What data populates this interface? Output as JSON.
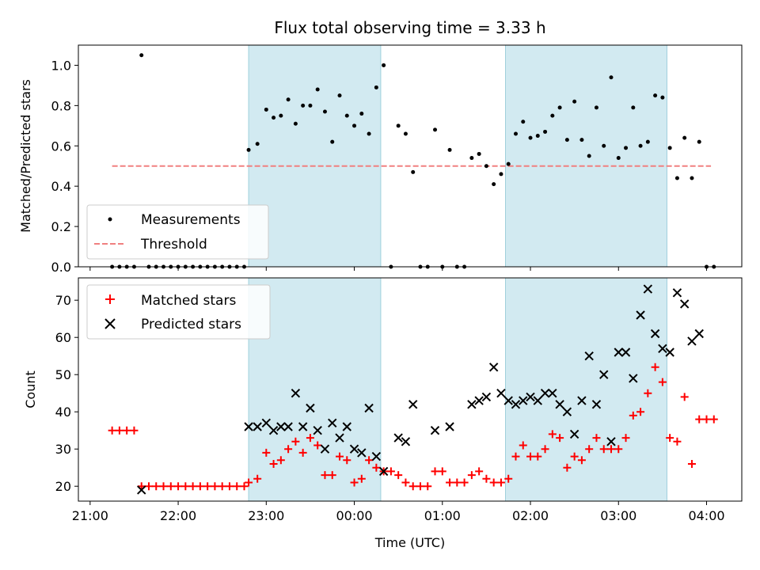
{
  "figure": {
    "title": "Flux total observing time = 3.33 h",
    "xlabel": "Time (UTC)",
    "x_tick_labels": [
      "21:00",
      "22:00",
      "23:00",
      "00:00",
      "01:00",
      "02:00",
      "03:00",
      "04:00"
    ],
    "shaded_intervals": [
      [
        "22:48",
        "00:18"
      ],
      [
        "01:43",
        "03:33"
      ]
    ],
    "shade_color": "#add8e6"
  },
  "chart_data": [
    {
      "type": "scatter",
      "xlabel": "",
      "ylabel": "Matched/Predicted stars",
      "xlim": [
        "20:52",
        "04:24"
      ],
      "ylim": [
        0,
        1.1
      ],
      "y_ticks": [
        "0.0",
        "0.2",
        "0.4",
        "0.6",
        "0.8",
        "1.0"
      ],
      "legend_position": "lower-left",
      "threshold": {
        "value": 0.5,
        "x_range": [
          "21:15",
          "04:03"
        ]
      },
      "series": [
        {
          "name": "Measurements",
          "color": "#000000",
          "marker": "dot",
          "points": [
            [
              "21:15",
              0
            ],
            [
              "21:20",
              0
            ],
            [
              "21:25",
              0
            ],
            [
              "21:30",
              0
            ],
            [
              "21:35",
              1.05
            ],
            [
              "21:40",
              0
            ],
            [
              "21:45",
              0
            ],
            [
              "21:50",
              0
            ],
            [
              "21:55",
              0
            ],
            [
              "22:00",
              0
            ],
            [
              "22:05",
              0
            ],
            [
              "22:10",
              0
            ],
            [
              "22:15",
              0
            ],
            [
              "22:20",
              0
            ],
            [
              "22:25",
              0
            ],
            [
              "22:30",
              0
            ],
            [
              "22:35",
              0
            ],
            [
              "22:40",
              0
            ],
            [
              "22:45",
              0
            ],
            [
              "22:48",
              0.58
            ],
            [
              "22:54",
              0.61
            ],
            [
              "23:00",
              0.78
            ],
            [
              "23:05",
              0.74
            ],
            [
              "23:10",
              0.75
            ],
            [
              "23:15",
              0.83
            ],
            [
              "23:20",
              0.71
            ],
            [
              "23:25",
              0.8
            ],
            [
              "23:30",
              0.8
            ],
            [
              "23:35",
              0.88
            ],
            [
              "23:40",
              0.77
            ],
            [
              "23:45",
              0.62
            ],
            [
              "23:50",
              0.85
            ],
            [
              "23:55",
              0.75
            ],
            [
              "00:00",
              0.7
            ],
            [
              "00:05",
              0.76
            ],
            [
              "00:10",
              0.66
            ],
            [
              "00:15",
              0.89
            ],
            [
              "00:20",
              1.0
            ],
            [
              "00:25",
              0
            ],
            [
              "00:30",
              0.7
            ],
            [
              "00:35",
              0.66
            ],
            [
              "00:40",
              0.47
            ],
            [
              "00:45",
              0
            ],
            [
              "00:50",
              0
            ],
            [
              "00:55",
              0.68
            ],
            [
              "01:00",
              0
            ],
            [
              "01:05",
              0.58
            ],
            [
              "01:10",
              0
            ],
            [
              "01:15",
              0
            ],
            [
              "01:20",
              0.54
            ],
            [
              "01:25",
              0.56
            ],
            [
              "01:30",
              0.5
            ],
            [
              "01:35",
              0.41
            ],
            [
              "01:40",
              0.46
            ],
            [
              "01:45",
              0.51
            ],
            [
              "01:50",
              0.66
            ],
            [
              "01:55",
              0.72
            ],
            [
              "02:00",
              0.64
            ],
            [
              "02:05",
              0.65
            ],
            [
              "02:10",
              0.67
            ],
            [
              "02:15",
              0.75
            ],
            [
              "02:20",
              0.79
            ],
            [
              "02:25",
              0.63
            ],
            [
              "02:30",
              0.82
            ],
            [
              "02:35",
              0.63
            ],
            [
              "02:40",
              0.55
            ],
            [
              "02:45",
              0.79
            ],
            [
              "02:50",
              0.6
            ],
            [
              "02:55",
              0.94
            ],
            [
              "03:00",
              0.54
            ],
            [
              "03:05",
              0.59
            ],
            [
              "03:10",
              0.79
            ],
            [
              "03:15",
              0.6
            ],
            [
              "03:20",
              0.62
            ],
            [
              "03:25",
              0.85
            ],
            [
              "03:30",
              0.84
            ],
            [
              "03:35",
              0.59
            ],
            [
              "03:40",
              0.44
            ],
            [
              "03:45",
              0.64
            ],
            [
              "03:50",
              0.44
            ],
            [
              "03:55",
              0.62
            ],
            [
              "04:00",
              0
            ],
            [
              "04:05",
              0
            ]
          ]
        },
        {
          "name": "Threshold",
          "color": "#f08080",
          "style": "dashed"
        }
      ]
    },
    {
      "type": "scatter",
      "xlabel": "Time (UTC)",
      "ylabel": "Count",
      "xlim": [
        "20:52",
        "04:24"
      ],
      "ylim": [
        16,
        76
      ],
      "y_ticks": [
        "20",
        "30",
        "40",
        "50",
        "60",
        "70"
      ],
      "legend_position": "top-left",
      "series": [
        {
          "name": "Matched stars",
          "color": "#ff0000",
          "marker": "plus",
          "points": [
            [
              "21:15",
              35
            ],
            [
              "21:20",
              35
            ],
            [
              "21:25",
              35
            ],
            [
              "21:30",
              35
            ],
            [
              "21:35",
              20
            ],
            [
              "21:40",
              20
            ],
            [
              "21:45",
              20
            ],
            [
              "21:50",
              20
            ],
            [
              "21:55",
              20
            ],
            [
              "22:00",
              20
            ],
            [
              "22:05",
              20
            ],
            [
              "22:10",
              20
            ],
            [
              "22:15",
              20
            ],
            [
              "22:20",
              20
            ],
            [
              "22:25",
              20
            ],
            [
              "22:30",
              20
            ],
            [
              "22:35",
              20
            ],
            [
              "22:40",
              20
            ],
            [
              "22:45",
              20
            ],
            [
              "22:48",
              21
            ],
            [
              "22:54",
              22
            ],
            [
              "23:00",
              29
            ],
            [
              "23:05",
              26
            ],
            [
              "23:10",
              27
            ],
            [
              "23:15",
              30
            ],
            [
              "23:20",
              32
            ],
            [
              "23:25",
              29
            ],
            [
              "23:30",
              33
            ],
            [
              "23:35",
              31
            ],
            [
              "23:40",
              23
            ],
            [
              "23:45",
              23
            ],
            [
              "23:50",
              28
            ],
            [
              "23:55",
              27
            ],
            [
              "00:00",
              21
            ],
            [
              "00:05",
              22
            ],
            [
              "00:10",
              27
            ],
            [
              "00:15",
              25
            ],
            [
              "00:20",
              24
            ],
            [
              "00:25",
              24
            ],
            [
              "00:30",
              23
            ],
            [
              "00:35",
              21
            ],
            [
              "00:40",
              20
            ],
            [
              "00:45",
              20
            ],
            [
              "00:50",
              20
            ],
            [
              "00:55",
              24
            ],
            [
              "01:00",
              24
            ],
            [
              "01:05",
              21
            ],
            [
              "01:10",
              21
            ],
            [
              "01:15",
              21
            ],
            [
              "01:20",
              23
            ],
            [
              "01:25",
              24
            ],
            [
              "01:30",
              22
            ],
            [
              "01:35",
              21
            ],
            [
              "01:40",
              21
            ],
            [
              "01:45",
              22
            ],
            [
              "01:50",
              28
            ],
            [
              "01:55",
              31
            ],
            [
              "02:00",
              28
            ],
            [
              "02:05",
              28
            ],
            [
              "02:10",
              30
            ],
            [
              "02:15",
              34
            ],
            [
              "02:20",
              33
            ],
            [
              "02:25",
              25
            ],
            [
              "02:30",
              28
            ],
            [
              "02:35",
              27
            ],
            [
              "02:40",
              30
            ],
            [
              "02:45",
              33
            ],
            [
              "02:50",
              30
            ],
            [
              "02:55",
              30
            ],
            [
              "03:00",
              30
            ],
            [
              "03:05",
              33
            ],
            [
              "03:10",
              39
            ],
            [
              "03:15",
              40
            ],
            [
              "03:20",
              45
            ],
            [
              "03:25",
              52
            ],
            [
              "03:30",
              48
            ],
            [
              "03:35",
              33
            ],
            [
              "03:40",
              32
            ],
            [
              "03:45",
              44
            ],
            [
              "03:50",
              26
            ],
            [
              "03:55",
              38
            ],
            [
              "04:00",
              38
            ],
            [
              "04:05",
              38
            ]
          ]
        },
        {
          "name": "Predicted stars",
          "color": "#000000",
          "marker": "x",
          "points": [
            [
              "21:35",
              19
            ],
            [
              "22:48",
              36
            ],
            [
              "22:54",
              36
            ],
            [
              "23:00",
              37
            ],
            [
              "23:05",
              35
            ],
            [
              "23:10",
              36
            ],
            [
              "23:15",
              36
            ],
            [
              "23:20",
              45
            ],
            [
              "23:25",
              36
            ],
            [
              "23:30",
              41
            ],
            [
              "23:35",
              35
            ],
            [
              "23:40",
              30
            ],
            [
              "23:45",
              37
            ],
            [
              "23:50",
              33
            ],
            [
              "23:55",
              36
            ],
            [
              "00:00",
              30
            ],
            [
              "00:05",
              29
            ],
            [
              "00:10",
              41
            ],
            [
              "00:15",
              28
            ],
            [
              "00:20",
              24
            ],
            [
              "00:30",
              33
            ],
            [
              "00:35",
              32
            ],
            [
              "00:40",
              42
            ],
            [
              "00:55",
              35
            ],
            [
              "01:05",
              36
            ],
            [
              "01:20",
              42
            ],
            [
              "01:25",
              43
            ],
            [
              "01:30",
              44
            ],
            [
              "01:35",
              52
            ],
            [
              "01:40",
              45
            ],
            [
              "01:45",
              43
            ],
            [
              "01:50",
              42
            ],
            [
              "01:55",
              43
            ],
            [
              "02:00",
              44
            ],
            [
              "02:05",
              43
            ],
            [
              "02:10",
              45
            ],
            [
              "02:15",
              45
            ],
            [
              "02:20",
              42
            ],
            [
              "02:25",
              40
            ],
            [
              "02:30",
              34
            ],
            [
              "02:35",
              43
            ],
            [
              "02:40",
              55
            ],
            [
              "02:45",
              42
            ],
            [
              "02:50",
              50
            ],
            [
              "02:55",
              32
            ],
            [
              "03:00",
              56
            ],
            [
              "03:05",
              56
            ],
            [
              "03:10",
              49
            ],
            [
              "03:15",
              66
            ],
            [
              "03:20",
              73
            ],
            [
              "03:25",
              61
            ],
            [
              "03:30",
              57
            ],
            [
              "03:35",
              56
            ],
            [
              "03:40",
              72
            ],
            [
              "03:45",
              69
            ],
            [
              "03:50",
              59
            ],
            [
              "03:55",
              61
            ]
          ]
        }
      ]
    }
  ]
}
